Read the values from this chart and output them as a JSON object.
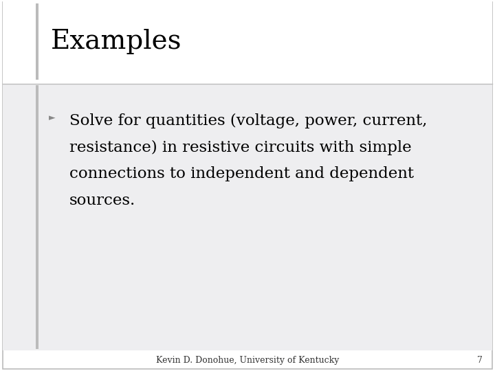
{
  "title": "Examples",
  "bullet_symbol": "►",
  "bullet_lines": [
    "Solve for quantities (voltage, power, current,",
    "resistance) in resistive circuits with simple",
    "connections to independent and dependent",
    "sources."
  ],
  "footer_text": "Kevin D. Donohue, University of Kentucky",
  "page_number": "7",
  "bg_color": "#ffffff",
  "content_bg_color": "#eeeef0",
  "title_font_size": 28,
  "bullet_font_size": 16.5,
  "footer_font_size": 9,
  "title_color": "#000000",
  "bullet_color": "#000000",
  "bullet_symbol_color": "#888888",
  "footer_color": "#333333",
  "left_bar_color": "#bbbbbb",
  "border_color": "#bbbbbb",
  "divider_color": "#bbbbbb"
}
